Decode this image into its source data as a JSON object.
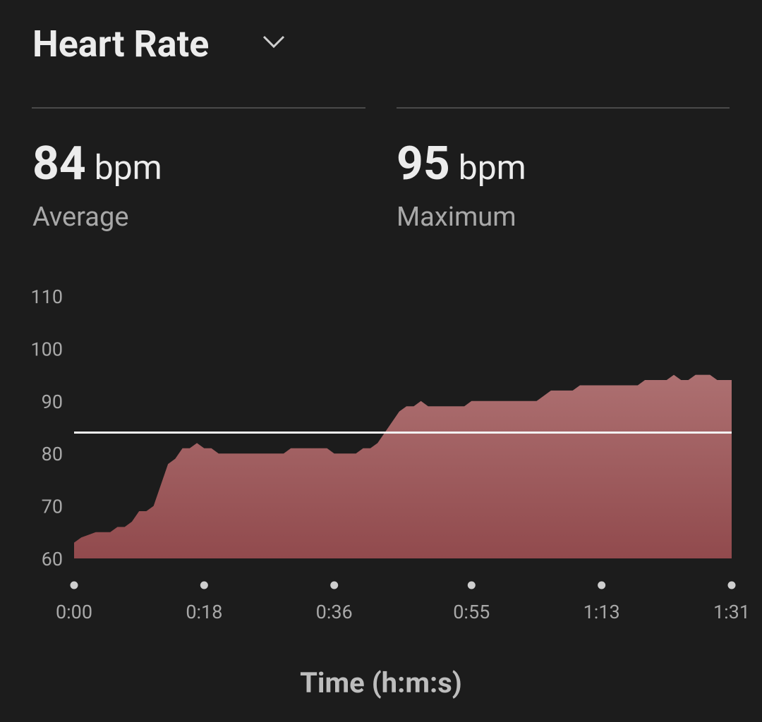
{
  "header": {
    "title": "Heart Rate"
  },
  "stats": [
    {
      "value": 84,
      "unit": "bpm",
      "label": "Average"
    },
    {
      "value": 95,
      "unit": "bpm",
      "label": "Maximum"
    }
  ],
  "chart_data": {
    "type": "area",
    "x_label": "Time (h:m:s)",
    "x": [
      0,
      1,
      3,
      5,
      6,
      7,
      8,
      9,
      10,
      11,
      13,
      14,
      15,
      16,
      17,
      18,
      19,
      20,
      29,
      30,
      35,
      36,
      39,
      40,
      41,
      42,
      45,
      46,
      47,
      48,
      49,
      54,
      55,
      64,
      66,
      69,
      70,
      78,
      79,
      82,
      83,
      84,
      85,
      86,
      88,
      89,
      91
    ],
    "values": [
      63,
      64,
      65,
      65,
      66,
      66,
      67,
      69,
      69,
      70,
      78,
      79,
      81,
      81,
      82,
      81,
      81,
      80,
      80,
      81,
      81,
      80,
      80,
      81,
      81,
      82,
      88,
      89,
      89,
      90,
      89,
      89,
      90,
      90,
      92,
      92,
      93,
      93,
      94,
      94,
      95,
      94,
      94,
      95,
      95,
      94,
      94
    ],
    "gradient": [
      "#ad7071",
      "#914a4d"
    ],
    "reference_color": "#f2f2f2",
    "xlim": [
      0,
      91
    ],
    "xticks": [
      {
        "value": 0,
        "label": "0:00"
      },
      {
        "value": 18,
        "label": "0:18"
      },
      {
        "value": 36,
        "label": "0:36"
      },
      {
        "value": 55,
        "label": "0:55"
      },
      {
        "value": 73,
        "label": "1:13"
      },
      {
        "value": 91,
        "label": "1:31"
      }
    ],
    "ylim": [
      60,
      110
    ],
    "yticks": [
      60,
      70,
      80,
      90,
      100,
      110
    ]
  }
}
